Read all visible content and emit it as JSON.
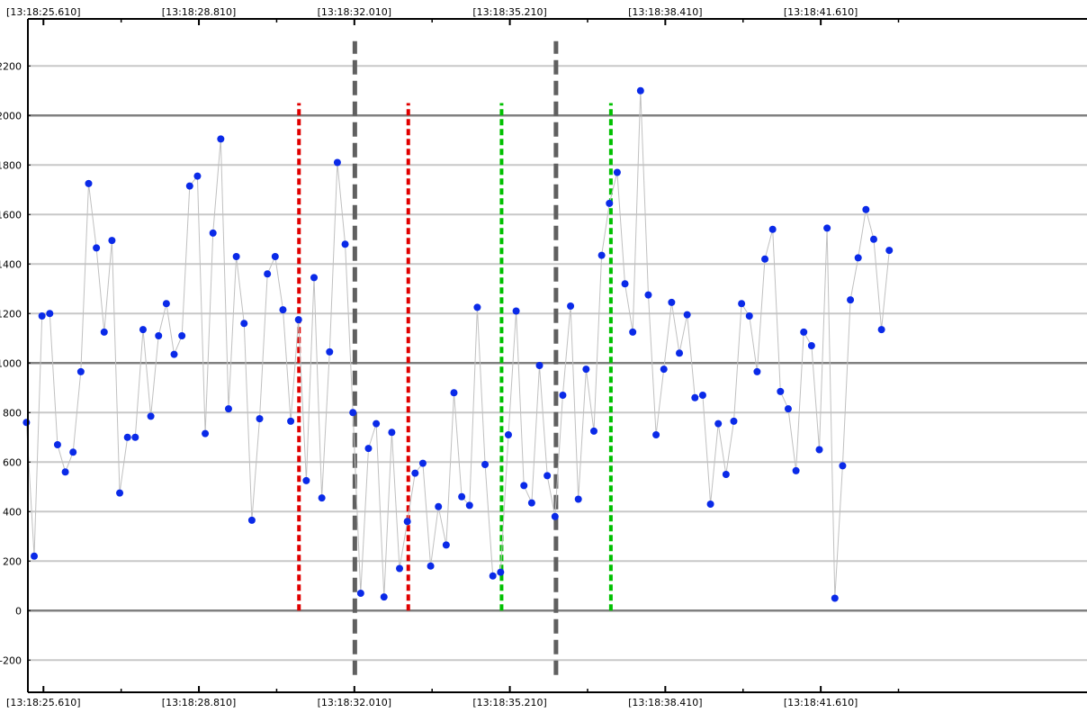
{
  "chart_data": {
    "type": "scatter",
    "title": "",
    "xlabel": "",
    "ylabel": "",
    "ylim": [
      -330,
      2390
    ],
    "y_ticks": [
      -200,
      0,
      200,
      400,
      600,
      800,
      1000,
      1200,
      1400,
      1600,
      1800,
      2000,
      2200
    ],
    "y_major_lines": [
      0,
      1000,
      2000
    ],
    "x_tick_labels": [
      "[13:18:25.610]",
      "[13:18:28.810]",
      "[13:18:32.010]",
      "[13:18:35.210]",
      "[13:18:38.410]",
      "[13:18:41.610]"
    ],
    "x_tick_seconds": [
      25.61,
      28.81,
      32.01,
      35.21,
      38.41,
      41.61
    ],
    "xlim_seconds": [
      25.29,
      47.09
    ],
    "grid": true,
    "colors": {
      "points": "#0a2ae8",
      "line": "#c0c0c0",
      "red_markers": "#e00000",
      "green_markers": "#00c000",
      "gray_markers": "#606060",
      "grid": "#c8c8c8",
      "major_grid": "#808080"
    },
    "vertical_markers": [
      {
        "kind": "red",
        "x_seconds": 30.87,
        "y_range": [
          0,
          2050
        ]
      },
      {
        "kind": "gray",
        "x_seconds": 32.02,
        "y_range": [
          -260,
          2300
        ]
      },
      {
        "kind": "red",
        "x_seconds": 33.12,
        "y_range": [
          0,
          2050
        ]
      },
      {
        "kind": "green",
        "x_seconds": 35.04,
        "y_range": [
          0,
          2050
        ]
      },
      {
        "kind": "gray",
        "x_seconds": 36.16,
        "y_range": [
          -260,
          2300
        ]
      },
      {
        "kind": "green",
        "x_seconds": 37.29,
        "y_range": [
          0,
          2050
        ]
      }
    ],
    "series": [
      {
        "x_seconds": [
          25.26,
          25.42,
          25.58,
          25.74,
          25.9,
          26.06,
          26.22,
          26.38,
          26.54,
          26.7,
          26.86,
          27.02,
          27.18,
          27.34,
          27.5,
          27.66,
          27.82,
          27.98,
          28.14,
          28.3,
          28.46,
          28.62,
          28.78,
          28.94,
          29.1,
          29.26,
          29.42,
          29.58,
          29.74,
          29.9,
          30.06,
          30.22,
          30.38,
          30.54,
          30.7,
          30.86,
          31.02,
          31.18,
          31.34,
          31.5,
          31.66,
          31.82,
          31.98,
          32.14,
          32.3,
          32.46,
          32.62,
          32.78,
          32.94,
          33.1,
          33.26,
          33.42,
          33.58,
          33.74,
          33.9,
          34.06,
          34.22,
          34.38,
          34.54,
          34.7,
          34.86,
          35.02,
          35.18,
          35.34,
          35.5,
          35.66,
          35.82,
          35.98,
          36.14,
          36.3,
          36.46,
          36.62,
          36.78,
          36.94,
          37.1,
          37.26,
          37.42,
          37.58,
          37.74,
          37.9,
          38.06,
          38.22,
          38.38,
          38.54,
          38.7,
          38.86,
          39.02,
          39.18,
          39.34,
          39.5,
          39.66,
          39.82,
          39.98,
          40.14,
          40.3,
          40.46,
          40.62,
          40.78,
          40.94,
          41.1,
          41.26,
          41.42,
          41.58,
          41.74,
          41.9,
          42.06,
          42.22,
          42.38,
          42.54,
          42.7,
          42.86,
          43.02
        ],
        "values": [
          760,
          220,
          1190,
          1200,
          670,
          560,
          640,
          965,
          1725,
          1465,
          1125,
          1495,
          475,
          700,
          700,
          1135,
          785,
          1110,
          1240,
          1035,
          1110,
          1715,
          1755,
          715,
          1525,
          1905,
          815,
          1430,
          1160,
          365,
          775,
          1360,
          1430,
          1215,
          765,
          1175,
          525,
          1345,
          455,
          1045,
          1810,
          1480,
          800,
          70,
          655,
          755,
          55,
          720,
          170,
          360,
          555,
          595,
          180,
          420,
          265,
          880,
          460,
          425,
          1225,
          590,
          140,
          155,
          710,
          1210,
          505,
          435,
          990,
          545,
          380,
          870,
          1230,
          450,
          975,
          725,
          1435,
          1645,
          1770,
          1320,
          1125,
          2100,
          1275,
          710,
          975,
          1245,
          1040,
          1195,
          860,
          870,
          430,
          755,
          550,
          765,
          1240,
          1190,
          965,
          1420,
          1540,
          885,
          815,
          565,
          1125,
          1070,
          650,
          1545,
          50,
          585,
          1255,
          1425,
          1620,
          1500,
          1135,
          1455
        ]
      }
    ]
  }
}
